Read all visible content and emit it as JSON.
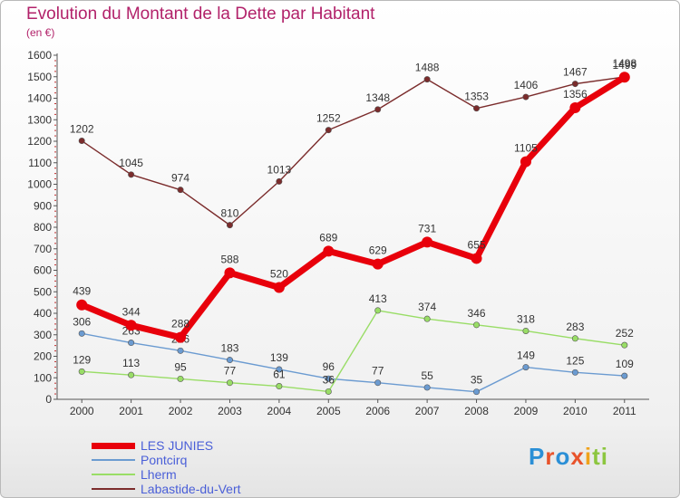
{
  "chart_data": {
    "type": "line",
    "title": "Evolution du Montant de la Dette par Habitant",
    "subtitle": "(en €)",
    "x": [
      "2000",
      "2001",
      "2002",
      "2003",
      "2004",
      "2005",
      "2006",
      "2007",
      "2008",
      "2009",
      "2010",
      "2011"
    ],
    "ylim": [
      0,
      1600
    ],
    "yticks": [
      0,
      100,
      200,
      300,
      400,
      500,
      600,
      700,
      800,
      900,
      1000,
      1100,
      1200,
      1300,
      1400,
      1500,
      1600
    ],
    "grid": false,
    "legend_position": "bottom-left",
    "series": [
      {
        "name": "LES JUNIES",
        "color": "#e8000b",
        "values": [
          439,
          344,
          288,
          588,
          520,
          689,
          629,
          731,
          655,
          1105,
          1356,
          1498
        ]
      },
      {
        "name": "Pontcirq",
        "color": "#6b9bd1",
        "values": [
          306,
          263,
          226,
          183,
          139,
          96,
          77,
          55,
          35,
          149,
          125,
          109
        ]
      },
      {
        "name": "Lherm",
        "color": "#99dd66",
        "values": [
          129,
          113,
          95,
          77,
          61,
          36,
          413,
          374,
          346,
          318,
          283,
          252
        ]
      },
      {
        "name": "Labastide-du-Vert",
        "color": "#7b2c2c",
        "values": [
          1202,
          1045,
          974,
          810,
          1013,
          1252,
          1348,
          1488,
          1353,
          1406,
          1467,
          1499
        ]
      }
    ]
  },
  "logo": {
    "text": "Proxiti"
  }
}
